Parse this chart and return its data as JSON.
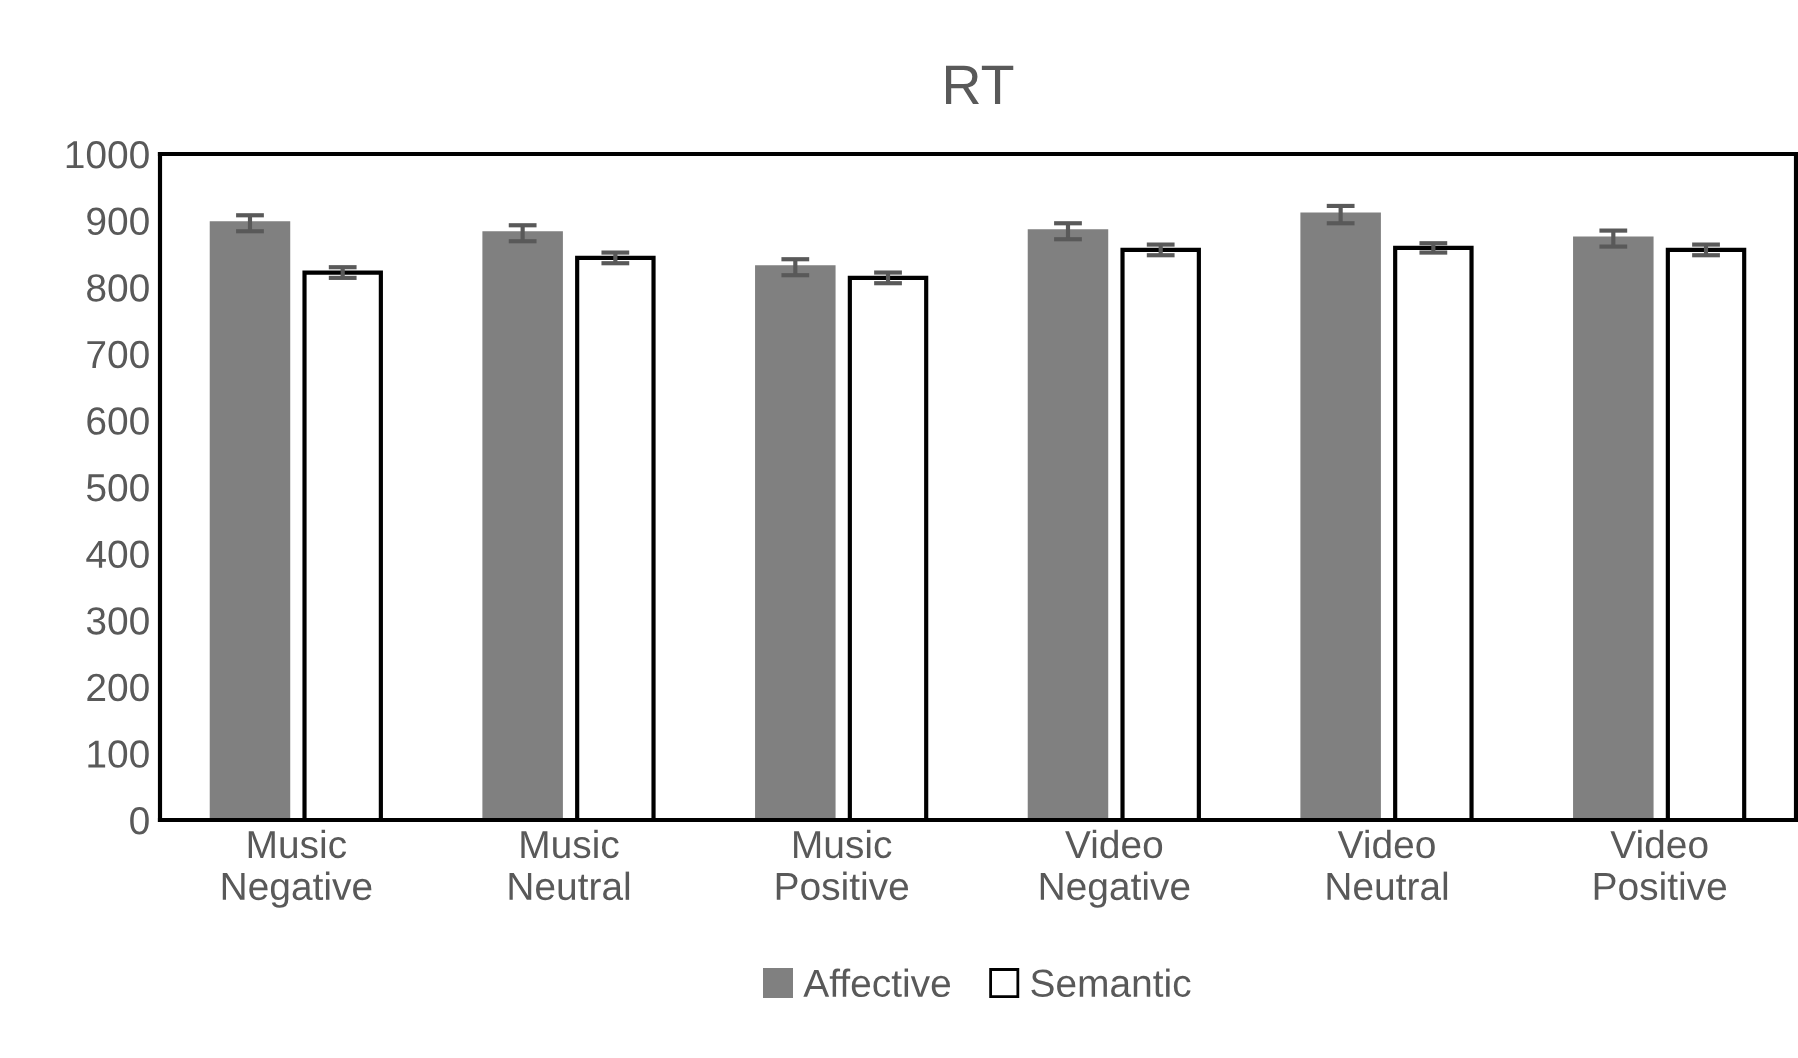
{
  "chart_data": {
    "type": "bar",
    "title": "RT",
    "categories": [
      "Music\nNegative",
      "Music\nNeutral",
      "Music\nPositive",
      "Video\nNegative",
      "Video\nNeutral",
      "Video\nPositive"
    ],
    "series": [
      {
        "name": "Affective",
        "color": "#808080",
        "values": [
          896,
          881,
          830,
          884,
          909,
          873
        ],
        "errors": [
          12,
          12,
          12,
          12,
          13,
          12
        ]
      },
      {
        "name": "Semantic",
        "color": "#ffffff",
        "values": [
          822,
          844,
          814,
          856,
          859,
          856
        ],
        "errors": [
          8,
          8,
          8,
          8,
          7,
          8
        ]
      }
    ],
    "ylim": [
      0,
      1000
    ],
    "yticks": [
      0,
      100,
      200,
      300,
      400,
      500,
      600,
      700,
      800,
      900,
      1000
    ],
    "grid": false,
    "legend": "bottom"
  }
}
